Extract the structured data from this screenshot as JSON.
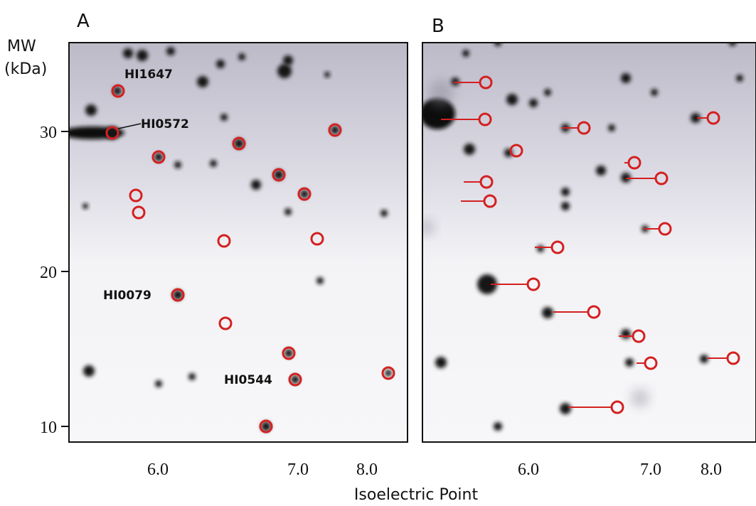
{
  "panels": [
    {
      "label": "A",
      "spot_labels": [
        "HI1647",
        "HI0572",
        "HI0079",
        "HI0544"
      ]
    },
    {
      "label": "B"
    }
  ],
  "y_axis": {
    "title_line1": "MW",
    "title_line2": "(kDa)",
    "ticks": [
      "30",
      "20",
      "10"
    ]
  },
  "x_axis": {
    "title": "Isoelectric Point",
    "ticks": [
      "6.0",
      "7.0",
      "8.0"
    ]
  }
}
